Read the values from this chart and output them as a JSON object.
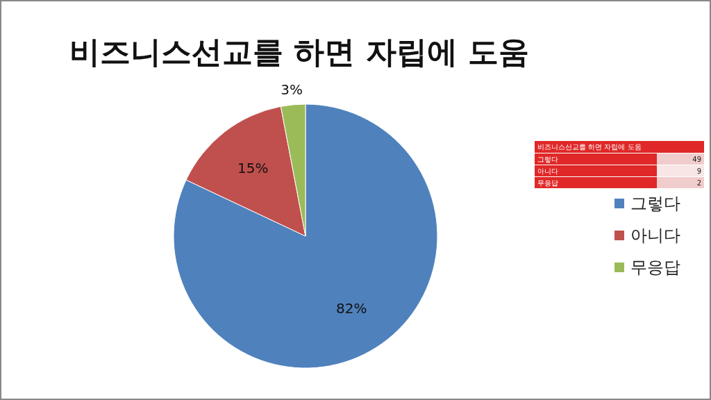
{
  "chart_data": [
    {
      "type": "pie",
      "title": "비즈니스선교를 하면 자립에 도움",
      "categories": [
        "그렇다",
        "아니다",
        "무응답"
      ],
      "values": [
        82,
        15,
        3
      ],
      "value_labels": [
        "82%",
        "15%",
        "3%"
      ],
      "colors": [
        "#4f81bd",
        "#c0504d",
        "#9bbb59"
      ],
      "legend": "right"
    },
    {
      "type": "other",
      "title": "비즈니스선교를 하면 자립에 도움",
      "categories": [
        "그렇다",
        "아니다",
        "무응답"
      ],
      "values": [
        49,
        9,
        2
      ],
      "data_labels": true
    }
  ]
}
